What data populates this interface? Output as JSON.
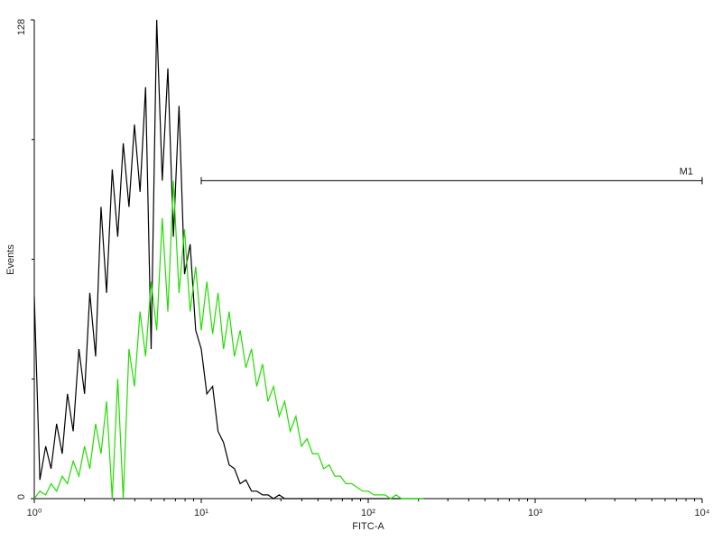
{
  "chart_data": {
    "type": "line",
    "ylabel": "Events",
    "xlabel": "FITC-A",
    "xscale": "log",
    "xlim": [
      1,
      10000
    ],
    "xticks": [
      {
        "value": 1,
        "label": "10⁰"
      },
      {
        "value": 10,
        "label": "10¹"
      },
      {
        "value": 100,
        "label": "10²"
      },
      {
        "value": 1000,
        "label": "10³"
      },
      {
        "value": 10000,
        "label": "10⁴"
      }
    ],
    "ylim": [
      0,
      128
    ],
    "yticks": [
      0,
      128
    ],
    "yminor_ticks": [
      32,
      64,
      96
    ],
    "x": [
      1,
      1.08,
      1.17,
      1.26,
      1.36,
      1.47,
      1.58,
      1.71,
      1.85,
      2,
      2.15,
      2.33,
      2.51,
      2.71,
      2.93,
      3.16,
      3.41,
      3.69,
      3.98,
      4.3,
      4.64,
      5.01,
      5.41,
      5.84,
      6.31,
      6.81,
      7.36,
      7.94,
      8.58,
      9.26,
      10,
      10.8,
      11.7,
      12.6,
      13.6,
      14.7,
      15.8,
      17.1,
      18.5,
      20,
      21.5,
      23.3,
      25.1,
      27.1,
      29.3,
      31.6,
      34.1,
      36.9,
      39.8,
      43,
      46.4,
      50.1,
      54.1,
      58.4,
      63.1,
      68.1,
      73.6,
      79.4,
      85.8,
      92.6,
      100,
      108,
      117,
      126,
      136,
      147,
      158,
      171,
      185,
      200,
      215
    ],
    "series": [
      {
        "color": "#000000",
        "values": [
          54,
          5,
          14,
          8,
          20,
          12,
          28,
          18,
          40,
          28,
          55,
          38,
          78,
          55,
          88,
          70,
          95,
          78,
          100,
          82,
          110,
          40,
          128,
          85,
          115,
          70,
          105,
          60,
          68,
          45,
          40,
          28,
          30,
          18,
          15,
          9,
          8,
          4,
          5,
          2,
          2,
          1,
          1,
          0,
          1,
          0,
          0,
          0,
          0,
          0,
          0,
          0,
          0,
          0,
          0,
          0,
          0,
          0,
          0,
          0,
          0,
          0,
          0,
          0,
          0,
          0,
          0,
          0,
          0,
          0,
          0
        ]
      },
      {
        "color": "#22dd00",
        "values": [
          0,
          2,
          1,
          4,
          2,
          6,
          4,
          10,
          6,
          14,
          8,
          20,
          12,
          26,
          0,
          32,
          0,
          40,
          30,
          50,
          38,
          58,
          45,
          75,
          50,
          85,
          55,
          72,
          50,
          62,
          45,
          58,
          44,
          55,
          40,
          50,
          38,
          45,
          35,
          40,
          30,
          36,
          26,
          30,
          22,
          26,
          18,
          22,
          14,
          16,
          12,
          12,
          8,
          9,
          6,
          6,
          4,
          4,
          3,
          2,
          2,
          1,
          1,
          1,
          0,
          1,
          0,
          0,
          0,
          0,
          0
        ]
      }
    ],
    "markers": [
      {
        "label": "M1",
        "x": [
          10,
          10000
        ],
        "y": 85
      }
    ]
  }
}
